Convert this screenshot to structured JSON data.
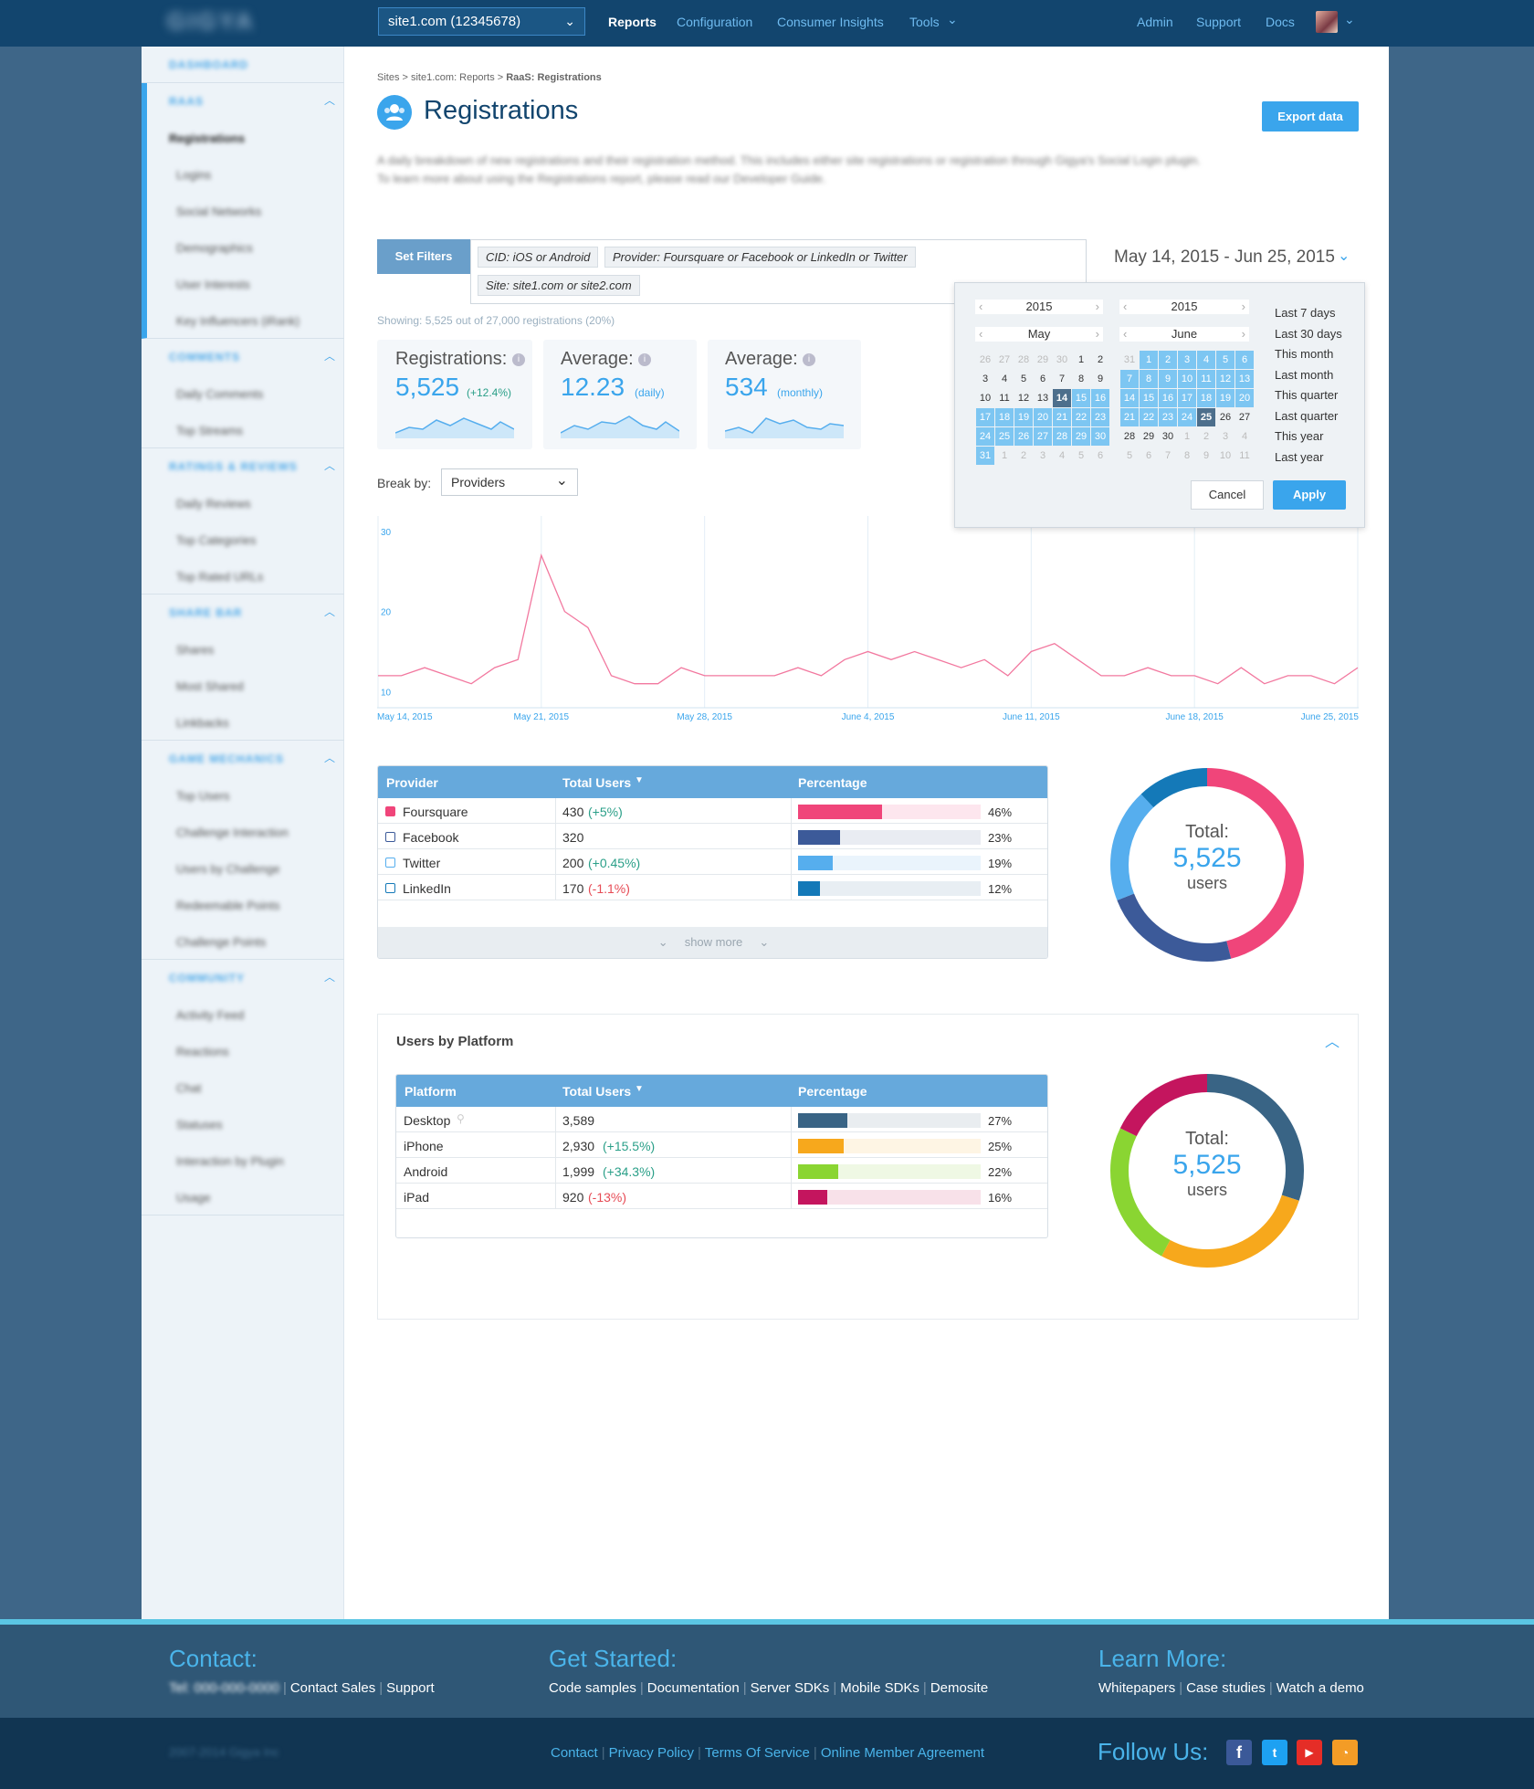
{
  "topbar": {
    "site_selector": "site1.com (12345678)",
    "nav": [
      "Reports",
      "Configuration",
      "Consumer Insights",
      "Tools"
    ],
    "right_links": [
      "Admin",
      "Support",
      "Docs"
    ]
  },
  "breadcrumb": {
    "trail": "Sites > site1.com: Reports > ",
    "current": "RaaS: Registrations"
  },
  "page": {
    "title": "Registrations",
    "export_label": "Export data",
    "desc_line1": "A daily breakdown of new registrations and their registration method. This includes either site registrations or registration through Gigya's Social Login plugin.",
    "desc_line2": "To learn more about using the Registrations report, please read our Developer Guide."
  },
  "filters": {
    "set_label": "Set Filters",
    "tags": [
      "CID: iOS or Android",
      "Provider: Foursquare or Facebook or LinkedIn or Twitter",
      "Site: site1.com or site2.com"
    ],
    "showing": "Showing: 5,525 out of 27,000 registrations (20%)"
  },
  "date_range": {
    "label": "May 14, 2015 - Jun 25, 2015",
    "cal1": {
      "year": "2015",
      "month": "May"
    },
    "cal2": {
      "year": "2015",
      "month": "June"
    },
    "presets": [
      "Last 7 days",
      "Last 30 days",
      "This month",
      "Last month",
      "This quarter",
      "Last quarter",
      "This year",
      "Last year"
    ],
    "cancel": "Cancel",
    "apply": "Apply"
  },
  "kpis": [
    {
      "label": "Registrations:",
      "value": "5,525",
      "sub": "(+12.4%)"
    },
    {
      "label": "Average:",
      "value": "12.23",
      "sub": "(daily)"
    },
    {
      "label": "Average:",
      "value": "534",
      "sub": "(monthly)"
    }
  ],
  "breakby": {
    "label": "Break by:",
    "value": "Providers"
  },
  "chart_data": {
    "type": "line",
    "x_labels": [
      "May 14, 2015",
      "May 21, 2015",
      "May 28, 2015",
      "June 4, 2015",
      "June 11, 2015",
      "June 18, 2015",
      "June 25, 2015"
    ],
    "y_ticks": [
      30,
      20,
      10
    ],
    "ylim": [
      8,
      31
    ],
    "series": [
      {
        "color": "#f2789f",
        "values": [
          12,
          12,
          13,
          12,
          11,
          13,
          14,
          27,
          20,
          18,
          12,
          11,
          11,
          13,
          12,
          12,
          12,
          12,
          13,
          12,
          14,
          15,
          14,
          15,
          14,
          13,
          14,
          12,
          15,
          16,
          14,
          12,
          12,
          13,
          12,
          12,
          11,
          13,
          11,
          12,
          12,
          11,
          13
        ]
      }
    ],
    "grid": true
  },
  "providers": {
    "headers": [
      "Provider",
      "Total Users",
      "Percentage"
    ],
    "rows": [
      {
        "name": "Foursquare",
        "total": "430",
        "delta": "(+5%)",
        "pct": "46%",
        "value": 46,
        "color": "#f0457a",
        "bg": "#fde6ee",
        "delta_type": "pos"
      },
      {
        "name": "Facebook",
        "total": "320",
        "delta": "",
        "pct": "23%",
        "value": 23,
        "color": "#3c5a99",
        "bg": "#e9ecf2",
        "delta_type": ""
      },
      {
        "name": "Twitter",
        "total": "200",
        "delta": "(+0.45%)",
        "pct": "19%",
        "value": 19,
        "color": "#56aeee",
        "bg": "#eaf4fc",
        "delta_type": "pos"
      },
      {
        "name": "LinkedIn",
        "total": "170",
        "delta": "(-1.1%)",
        "pct": "12%",
        "value": 12,
        "color": "#1479b8",
        "bg": "#e8eef3",
        "delta_type": "neg"
      }
    ],
    "show_more": "show more",
    "donut": {
      "label": "Total:",
      "value": "5,525",
      "unit": "users"
    }
  },
  "platforms": {
    "title": "Users by Platform",
    "headers": [
      "Platform",
      "Total Users",
      "Percentage"
    ],
    "rows": [
      {
        "name": "Desktop",
        "total": "3,589",
        "delta": "",
        "pct": "27%",
        "value": 27,
        "color": "#396485",
        "bg": "#e9edf0",
        "delta_type": ""
      },
      {
        "name": "iPhone",
        "total": "2,930",
        "delta": "(+15.5%)",
        "pct": "25%",
        "value": 25,
        "color": "#f7a81c",
        "bg": "#fef5e4",
        "delta_type": "pos"
      },
      {
        "name": "Android",
        "total": "1,999",
        "delta": "(+34.3%)",
        "pct": "22%",
        "value": 22,
        "color": "#8ad532",
        "bg": "#eff8e4",
        "delta_type": "pos"
      },
      {
        "name": "iPad",
        "total": "920",
        "delta": "(-13%)",
        "pct": "16%",
        "value": 16,
        "color": "#c4155e",
        "bg": "#f8e1e9",
        "delta_type": "neg"
      }
    ],
    "donut": {
      "label": "Total:",
      "value": "5,525",
      "unit": "users"
    }
  },
  "sidebar": {
    "sections": [
      {
        "head": "DASHBOARD",
        "items": []
      },
      {
        "head": "RAAS",
        "items": [
          "Registrations",
          "Logins",
          "Social Networks",
          "Demographics",
          "User Interests",
          "Key Influencers (iRank)"
        ]
      },
      {
        "head": "COMMENTS",
        "items": [
          "Daily Comments",
          "Top Streams"
        ]
      },
      {
        "head": "RATINGS & REVIEWS",
        "items": [
          "Daily Reviews",
          "Top Categories",
          "Top Rated URLs"
        ]
      },
      {
        "head": "SHARE BAR",
        "items": [
          "Shares",
          "Most Shared",
          "Linkbacks"
        ]
      },
      {
        "head": "GAME MECHANICS",
        "items": [
          "Top Users",
          "Challenge Interaction",
          "Users by Challenge",
          "Redeemable Points",
          "Challenge Points"
        ]
      },
      {
        "head": "COMMUNITY",
        "items": [
          "Activity Feed",
          "Reactions",
          "Chat",
          "Statuses",
          "Interaction by Plugin",
          "Usage"
        ]
      }
    ]
  },
  "footer": {
    "contact": {
      "title": "Contact:",
      "phone": "Tel: 000-000-0000",
      "links": [
        "Contact Sales",
        "Support"
      ]
    },
    "get_started": {
      "title": "Get Started:",
      "links": [
        "Code samples",
        "Documentation",
        "Server SDKs",
        "Mobile SDKs",
        "Demosite"
      ]
    },
    "learn_more": {
      "title": "Learn More:",
      "links": [
        "Whitepapers",
        "Case studies",
        "Watch a demo"
      ]
    },
    "copyright": "2007-2014 Gigya Inc",
    "bottom_links": [
      "Contact",
      "Privacy Policy",
      "Terms Of Service",
      "Online Member Agreement"
    ],
    "follow": "Follow Us:"
  },
  "colors": {
    "accent": "#3aa5ec",
    "header_bg": "#12456e",
    "chart_line": "#f2789f"
  }
}
